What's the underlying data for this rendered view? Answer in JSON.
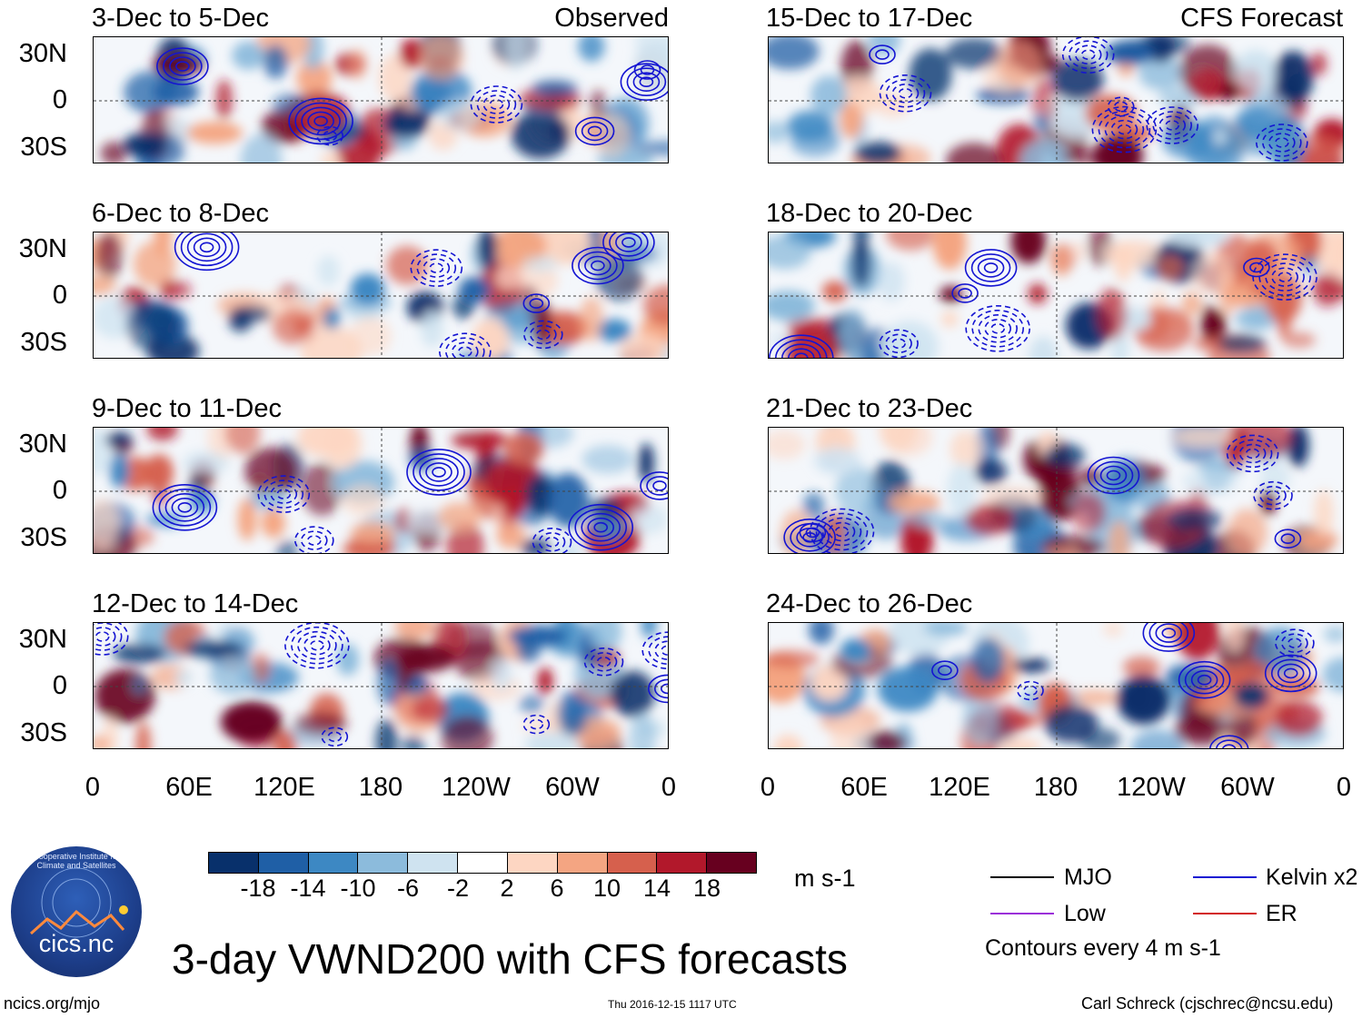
{
  "figure": {
    "main_title": "3-day VWND200 with CFS forecasts",
    "footer_left": "ncics.org/mjo",
    "footer_center": "Thu 2016-12-15 1117 UTC",
    "footer_right": "Carl Schreck (cjschrec@ncsu.edu)",
    "logo_name": "cics.nc",
    "logo_arc_text": "Cooperative Institute for Climate and Satellites",
    "observed_label": "Observed",
    "forecast_label": "CFS Forecast"
  },
  "chart_data": {
    "type": "heatmap",
    "variable": "VWND200",
    "units": "m s-1",
    "lat_ticks": [
      "30N",
      "0",
      "30S"
    ],
    "lon_ticks": [
      "0",
      "60E",
      "120E",
      "180",
      "120W",
      "60W",
      "0"
    ],
    "colorbar": {
      "labels": [
        "-18",
        "-14",
        "-10",
        "-6",
        "-2",
        "2",
        "6",
        "10",
        "14",
        "18"
      ],
      "colors": [
        "#08306b",
        "#1f5fa6",
        "#3d88c3",
        "#8cbbdc",
        "#cfe3f0",
        "#ffffff",
        "#fdd6c2",
        "#f4a582",
        "#d6604d",
        "#b2182b",
        "#67001f"
      ]
    },
    "legend": {
      "items": [
        {
          "label": "MJO",
          "color": "#000000"
        },
        {
          "label": "Kelvin x2",
          "color": "#1414d2"
        },
        {
          "label": "Low",
          "color": "#9b30d9"
        },
        {
          "label": "ER",
          "color": "#d21e1e"
        }
      ],
      "note": "Contours every 4 m s-1"
    },
    "panels": [
      {
        "period": "3-Dec to 5-Dec",
        "source": "Observed"
      },
      {
        "period": "6-Dec to 8-Dec",
        "source": "Observed"
      },
      {
        "period": "9-Dec to 11-Dec",
        "source": "Observed"
      },
      {
        "period": "12-Dec to 14-Dec",
        "source": "Observed"
      },
      {
        "period": "15-Dec to 17-Dec",
        "source": "CFS Forecast"
      },
      {
        "period": "18-Dec to 20-Dec",
        "source": "CFS Forecast"
      },
      {
        "period": "21-Dec to 23-Dec",
        "source": "CFS Forecast"
      },
      {
        "period": "24-Dec to 26-Dec",
        "source": "CFS Forecast"
      }
    ]
  }
}
